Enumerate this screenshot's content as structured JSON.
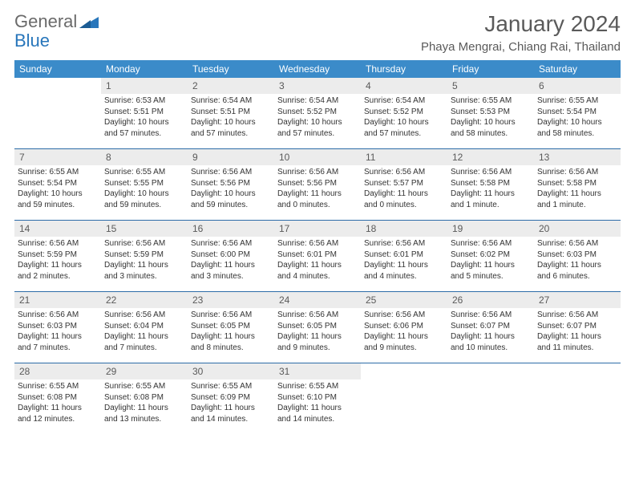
{
  "brand": {
    "part1": "General",
    "part2": "Blue"
  },
  "title": "January 2024",
  "location": "Phaya Mengrai, Chiang Rai, Thailand",
  "colors": {
    "header_bg": "#3b8bc9",
    "header_text": "#ffffff",
    "week_divider": "#2d6ca8",
    "daynum_bg": "#ececec",
    "text_gray": "#5a5a5a",
    "logo_blue": "#2876bb"
  },
  "dow": [
    "Sunday",
    "Monday",
    "Tuesday",
    "Wednesday",
    "Thursday",
    "Friday",
    "Saturday"
  ],
  "weeks": [
    [
      {
        "num": "",
        "sunrise": "",
        "sunset": "",
        "daylight1": "",
        "daylight2": ""
      },
      {
        "num": "1",
        "sunrise": "Sunrise: 6:53 AM",
        "sunset": "Sunset: 5:51 PM",
        "daylight1": "Daylight: 10 hours",
        "daylight2": "and 57 minutes."
      },
      {
        "num": "2",
        "sunrise": "Sunrise: 6:54 AM",
        "sunset": "Sunset: 5:51 PM",
        "daylight1": "Daylight: 10 hours",
        "daylight2": "and 57 minutes."
      },
      {
        "num": "3",
        "sunrise": "Sunrise: 6:54 AM",
        "sunset": "Sunset: 5:52 PM",
        "daylight1": "Daylight: 10 hours",
        "daylight2": "and 57 minutes."
      },
      {
        "num": "4",
        "sunrise": "Sunrise: 6:54 AM",
        "sunset": "Sunset: 5:52 PM",
        "daylight1": "Daylight: 10 hours",
        "daylight2": "and 57 minutes."
      },
      {
        "num": "5",
        "sunrise": "Sunrise: 6:55 AM",
        "sunset": "Sunset: 5:53 PM",
        "daylight1": "Daylight: 10 hours",
        "daylight2": "and 58 minutes."
      },
      {
        "num": "6",
        "sunrise": "Sunrise: 6:55 AM",
        "sunset": "Sunset: 5:54 PM",
        "daylight1": "Daylight: 10 hours",
        "daylight2": "and 58 minutes."
      }
    ],
    [
      {
        "num": "7",
        "sunrise": "Sunrise: 6:55 AM",
        "sunset": "Sunset: 5:54 PM",
        "daylight1": "Daylight: 10 hours",
        "daylight2": "and 59 minutes."
      },
      {
        "num": "8",
        "sunrise": "Sunrise: 6:55 AM",
        "sunset": "Sunset: 5:55 PM",
        "daylight1": "Daylight: 10 hours",
        "daylight2": "and 59 minutes."
      },
      {
        "num": "9",
        "sunrise": "Sunrise: 6:56 AM",
        "sunset": "Sunset: 5:56 PM",
        "daylight1": "Daylight: 10 hours",
        "daylight2": "and 59 minutes."
      },
      {
        "num": "10",
        "sunrise": "Sunrise: 6:56 AM",
        "sunset": "Sunset: 5:56 PM",
        "daylight1": "Daylight: 11 hours",
        "daylight2": "and 0 minutes."
      },
      {
        "num": "11",
        "sunrise": "Sunrise: 6:56 AM",
        "sunset": "Sunset: 5:57 PM",
        "daylight1": "Daylight: 11 hours",
        "daylight2": "and 0 minutes."
      },
      {
        "num": "12",
        "sunrise": "Sunrise: 6:56 AM",
        "sunset": "Sunset: 5:58 PM",
        "daylight1": "Daylight: 11 hours",
        "daylight2": "and 1 minute."
      },
      {
        "num": "13",
        "sunrise": "Sunrise: 6:56 AM",
        "sunset": "Sunset: 5:58 PM",
        "daylight1": "Daylight: 11 hours",
        "daylight2": "and 1 minute."
      }
    ],
    [
      {
        "num": "14",
        "sunrise": "Sunrise: 6:56 AM",
        "sunset": "Sunset: 5:59 PM",
        "daylight1": "Daylight: 11 hours",
        "daylight2": "and 2 minutes."
      },
      {
        "num": "15",
        "sunrise": "Sunrise: 6:56 AM",
        "sunset": "Sunset: 5:59 PM",
        "daylight1": "Daylight: 11 hours",
        "daylight2": "and 3 minutes."
      },
      {
        "num": "16",
        "sunrise": "Sunrise: 6:56 AM",
        "sunset": "Sunset: 6:00 PM",
        "daylight1": "Daylight: 11 hours",
        "daylight2": "and 3 minutes."
      },
      {
        "num": "17",
        "sunrise": "Sunrise: 6:56 AM",
        "sunset": "Sunset: 6:01 PM",
        "daylight1": "Daylight: 11 hours",
        "daylight2": "and 4 minutes."
      },
      {
        "num": "18",
        "sunrise": "Sunrise: 6:56 AM",
        "sunset": "Sunset: 6:01 PM",
        "daylight1": "Daylight: 11 hours",
        "daylight2": "and 4 minutes."
      },
      {
        "num": "19",
        "sunrise": "Sunrise: 6:56 AM",
        "sunset": "Sunset: 6:02 PM",
        "daylight1": "Daylight: 11 hours",
        "daylight2": "and 5 minutes."
      },
      {
        "num": "20",
        "sunrise": "Sunrise: 6:56 AM",
        "sunset": "Sunset: 6:03 PM",
        "daylight1": "Daylight: 11 hours",
        "daylight2": "and 6 minutes."
      }
    ],
    [
      {
        "num": "21",
        "sunrise": "Sunrise: 6:56 AM",
        "sunset": "Sunset: 6:03 PM",
        "daylight1": "Daylight: 11 hours",
        "daylight2": "and 7 minutes."
      },
      {
        "num": "22",
        "sunrise": "Sunrise: 6:56 AM",
        "sunset": "Sunset: 6:04 PM",
        "daylight1": "Daylight: 11 hours",
        "daylight2": "and 7 minutes."
      },
      {
        "num": "23",
        "sunrise": "Sunrise: 6:56 AM",
        "sunset": "Sunset: 6:05 PM",
        "daylight1": "Daylight: 11 hours",
        "daylight2": "and 8 minutes."
      },
      {
        "num": "24",
        "sunrise": "Sunrise: 6:56 AM",
        "sunset": "Sunset: 6:05 PM",
        "daylight1": "Daylight: 11 hours",
        "daylight2": "and 9 minutes."
      },
      {
        "num": "25",
        "sunrise": "Sunrise: 6:56 AM",
        "sunset": "Sunset: 6:06 PM",
        "daylight1": "Daylight: 11 hours",
        "daylight2": "and 9 minutes."
      },
      {
        "num": "26",
        "sunrise": "Sunrise: 6:56 AM",
        "sunset": "Sunset: 6:07 PM",
        "daylight1": "Daylight: 11 hours",
        "daylight2": "and 10 minutes."
      },
      {
        "num": "27",
        "sunrise": "Sunrise: 6:56 AM",
        "sunset": "Sunset: 6:07 PM",
        "daylight1": "Daylight: 11 hours",
        "daylight2": "and 11 minutes."
      }
    ],
    [
      {
        "num": "28",
        "sunrise": "Sunrise: 6:55 AM",
        "sunset": "Sunset: 6:08 PM",
        "daylight1": "Daylight: 11 hours",
        "daylight2": "and 12 minutes."
      },
      {
        "num": "29",
        "sunrise": "Sunrise: 6:55 AM",
        "sunset": "Sunset: 6:08 PM",
        "daylight1": "Daylight: 11 hours",
        "daylight2": "and 13 minutes."
      },
      {
        "num": "30",
        "sunrise": "Sunrise: 6:55 AM",
        "sunset": "Sunset: 6:09 PM",
        "daylight1": "Daylight: 11 hours",
        "daylight2": "and 14 minutes."
      },
      {
        "num": "31",
        "sunrise": "Sunrise: 6:55 AM",
        "sunset": "Sunset: 6:10 PM",
        "daylight1": "Daylight: 11 hours",
        "daylight2": "and 14 minutes."
      },
      {
        "num": "",
        "sunrise": "",
        "sunset": "",
        "daylight1": "",
        "daylight2": ""
      },
      {
        "num": "",
        "sunrise": "",
        "sunset": "",
        "daylight1": "",
        "daylight2": ""
      },
      {
        "num": "",
        "sunrise": "",
        "sunset": "",
        "daylight1": "",
        "daylight2": ""
      }
    ]
  ]
}
